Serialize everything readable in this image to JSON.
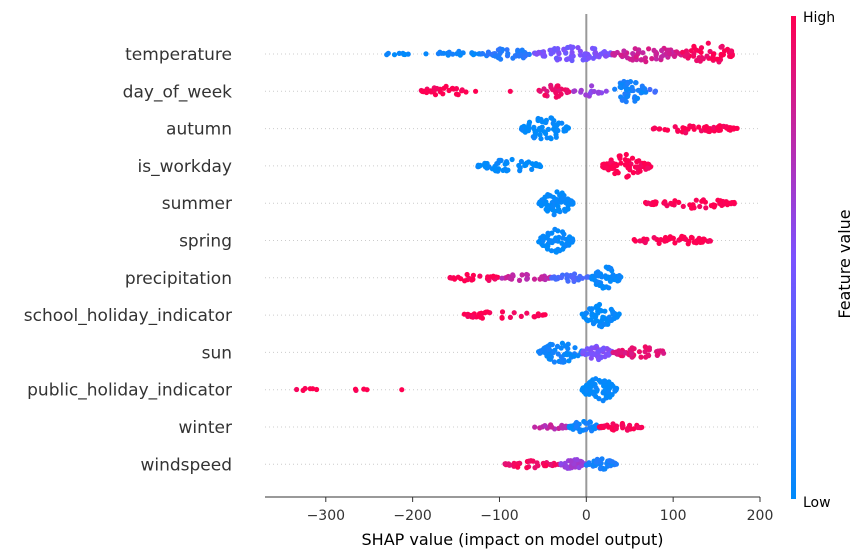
{
  "chart_data": {
    "type": "scatter",
    "subtype": "shap-beeswarm",
    "xlabel": "SHAP value (impact on model output)",
    "xlim": [
      -370,
      200
    ],
    "x_ticks": [
      -300,
      -200,
      -100,
      0,
      100,
      200
    ],
    "x_tick_labels": [
      "−300",
      "−200",
      "−100",
      "0",
      "100",
      "200"
    ],
    "zero_line": 0,
    "colorbar": {
      "label": "Feature value",
      "high_label": "High",
      "low_label": "Low",
      "low_color": "#008bfb",
      "mid_color": "#7c52ff",
      "high_color": "#ff0051"
    },
    "features": [
      {
        "name": "temperature",
        "clusters": [
          {
            "min": -235,
            "max": -205,
            "n": 8,
            "v": 0.02,
            "w": 0.12
          },
          {
            "min": -185,
            "max": -120,
            "n": 20,
            "v": 0.05,
            "w": 0.25
          },
          {
            "min": -120,
            "max": -60,
            "n": 40,
            "v": 0.15,
            "w": 0.45
          },
          {
            "min": -60,
            "max": 30,
            "n": 80,
            "v": 0.48,
            "w": 0.6
          },
          {
            "min": 30,
            "max": 110,
            "n": 60,
            "v": 0.8,
            "w": 0.6
          },
          {
            "min": 110,
            "max": 172,
            "n": 50,
            "v": 0.97,
            "w": 0.9
          }
        ]
      },
      {
        "name": "day_of_week",
        "clusters": [
          {
            "min": -190,
            "max": -135,
            "n": 30,
            "v": 1.0,
            "w": 0.4
          },
          {
            "min": -130,
            "max": -125,
            "n": 1,
            "v": 1.0,
            "w": 0.0
          },
          {
            "min": -90,
            "max": -85,
            "n": 1,
            "v": 0.95,
            "w": 0.0
          },
          {
            "min": -55,
            "max": -20,
            "n": 25,
            "v": 0.92,
            "w": 0.5
          },
          {
            "min": -15,
            "max": 30,
            "n": 15,
            "v": 0.6,
            "w": 0.45
          },
          {
            "min": 30,
            "max": 70,
            "n": 45,
            "v": 0.08,
            "w": 0.9
          },
          {
            "min": 70,
            "max": 80,
            "n": 4,
            "v": 0.3,
            "w": 0.2
          }
        ]
      },
      {
        "name": "autumn",
        "clusters": [
          {
            "min": -75,
            "max": -20,
            "n": 70,
            "v": 0.0,
            "w": 0.9
          },
          {
            "min": 77,
            "max": 175,
            "n": 55,
            "v": 1.0,
            "w": 0.35
          }
        ]
      },
      {
        "name": "is_workday",
        "clusters": [
          {
            "min": -125,
            "max": -50,
            "n": 55,
            "v": 0.0,
            "w": 0.5
          },
          {
            "min": 18,
            "max": 75,
            "n": 70,
            "v": 1.0,
            "w": 0.9
          }
        ]
      },
      {
        "name": "summer",
        "clusters": [
          {
            "min": -55,
            "max": -15,
            "n": 70,
            "v": 0.0,
            "w": 0.9
          },
          {
            "min": 68,
            "max": 172,
            "n": 55,
            "v": 1.0,
            "w": 0.4
          }
        ]
      },
      {
        "name": "spring",
        "clusters": [
          {
            "min": -55,
            "max": -15,
            "n": 70,
            "v": 0.0,
            "w": 0.9
          },
          {
            "min": 48,
            "max": 145,
            "n": 55,
            "v": 1.0,
            "w": 0.35
          }
        ]
      },
      {
        "name": "precipitation",
        "clusters": [
          {
            "min": -158,
            "max": -100,
            "n": 25,
            "v": 1.0,
            "w": 0.3
          },
          {
            "min": -100,
            "max": -40,
            "n": 30,
            "v": 0.75,
            "w": 0.3
          },
          {
            "min": -40,
            "max": 5,
            "n": 30,
            "v": 0.3,
            "w": 0.3
          },
          {
            "min": 5,
            "max": 40,
            "n": 55,
            "v": 0.02,
            "w": 0.85
          }
        ]
      },
      {
        "name": "school_holiday_indicator",
        "clusters": [
          {
            "min": -150,
            "max": -45,
            "n": 35,
            "v": 1.0,
            "w": 0.3
          },
          {
            "min": -5,
            "max": 38,
            "n": 60,
            "v": 0.0,
            "w": 0.9
          }
        ]
      },
      {
        "name": "sun",
        "clusters": [
          {
            "min": -55,
            "max": -5,
            "n": 60,
            "v": 0.05,
            "w": 0.8
          },
          {
            "min": -5,
            "max": 30,
            "n": 45,
            "v": 0.5,
            "w": 0.6
          },
          {
            "min": 30,
            "max": 92,
            "n": 45,
            "v": 0.9,
            "w": 0.45
          }
        ]
      },
      {
        "name": "public_holiday_indicator",
        "clusters": [
          {
            "min": -345,
            "max": -295,
            "n": 6,
            "v": 1.0,
            "w": 0.1
          },
          {
            "min": -270,
            "max": -250,
            "n": 4,
            "v": 1.0,
            "w": 0.1
          },
          {
            "min": -215,
            "max": -210,
            "n": 1,
            "v": 1.0,
            "w": 0.0
          },
          {
            "min": -5,
            "max": 35,
            "n": 70,
            "v": 0.0,
            "w": 0.9
          }
        ]
      },
      {
        "name": "winter",
        "clusters": [
          {
            "min": -60,
            "max": -20,
            "n": 20,
            "v": 0.75,
            "w": 0.2
          },
          {
            "min": -20,
            "max": 15,
            "n": 40,
            "v": 0.05,
            "w": 0.5
          },
          {
            "min": 15,
            "max": 65,
            "n": 35,
            "v": 1.0,
            "w": 0.3
          }
        ]
      },
      {
        "name": "windspeed",
        "clusters": [
          {
            "min": -95,
            "max": -30,
            "n": 40,
            "v": 0.95,
            "w": 0.3
          },
          {
            "min": -30,
            "max": 0,
            "n": 35,
            "v": 0.6,
            "w": 0.4
          },
          {
            "min": 0,
            "max": 35,
            "n": 40,
            "v": 0.1,
            "w": 0.45
          }
        ]
      }
    ]
  }
}
